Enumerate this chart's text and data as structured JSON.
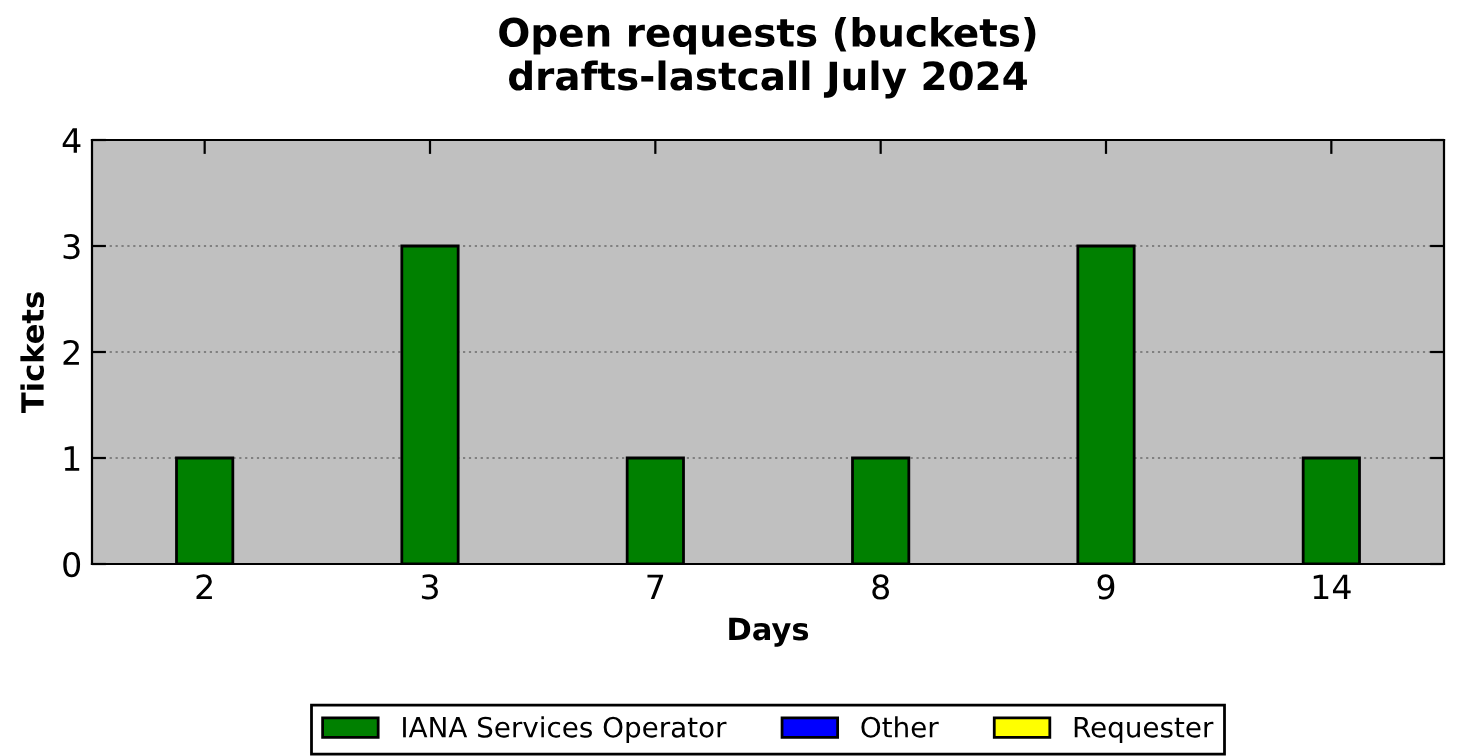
{
  "chart_data": {
    "type": "bar",
    "title": "Open requests (buckets)\ndrafts-lastcall July 2024",
    "xlabel": "Days",
    "ylabel": "Tickets",
    "categories": [
      "2",
      "3",
      "7",
      "8",
      "9",
      "14"
    ],
    "series": [
      {
        "name": "IANA Services Operator",
        "color": "#008000",
        "values": [
          1,
          3,
          1,
          1,
          3,
          1
        ]
      },
      {
        "name": "Other",
        "color": "#0000ff",
        "values": [
          0,
          0,
          0,
          0,
          0,
          0
        ]
      },
      {
        "name": "Requester",
        "color": "#ffff00",
        "values": [
          0,
          0,
          0,
          0,
          0,
          0
        ]
      }
    ],
    "stacked": true,
    "ylim": [
      0,
      4
    ],
    "yticks": [
      0,
      1,
      2,
      3,
      4
    ],
    "grid": "y",
    "legend": "bottom"
  }
}
